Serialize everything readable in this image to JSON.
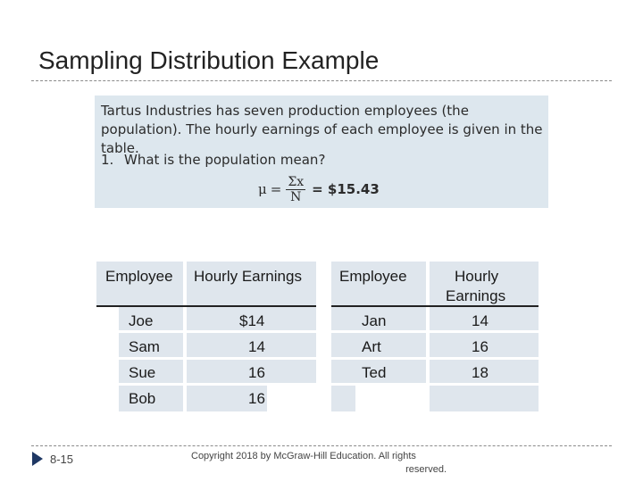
{
  "slide": {
    "title": "Sampling Distribution Example",
    "slide_number": "8-15",
    "copyright_line1": "Copyright  2018 by McGraw-Hill Education.  All rights",
    "copyright_line2": "reserved."
  },
  "problem": {
    "intro": "Tartus Industries has seven production employees (the population). The hourly earnings of each employee is given in the table.",
    "question_number": "1.",
    "question": "What is the population mean?",
    "formula_lhs": "μ",
    "formula_eq": "=",
    "formula_numerator": "Σx",
    "formula_denominator": "N",
    "formula_result": "= $15.43"
  },
  "table": {
    "headers": [
      "Employee",
      "Hourly Earnings",
      "Employee",
      "Hourly",
      "Earnings"
    ],
    "rows": [
      [
        "Joe",
        "$14",
        "Jan",
        "14"
      ],
      [
        "Sam",
        "14",
        "Art",
        "16"
      ],
      [
        "Sue",
        "16",
        "Ted",
        "18"
      ],
      [
        "Bob",
        "16",
        "",
        ""
      ]
    ]
  },
  "colors": {
    "box_background": "#dde7ee",
    "table_band": "#dfe6ed",
    "bullet": "#1f3864"
  }
}
